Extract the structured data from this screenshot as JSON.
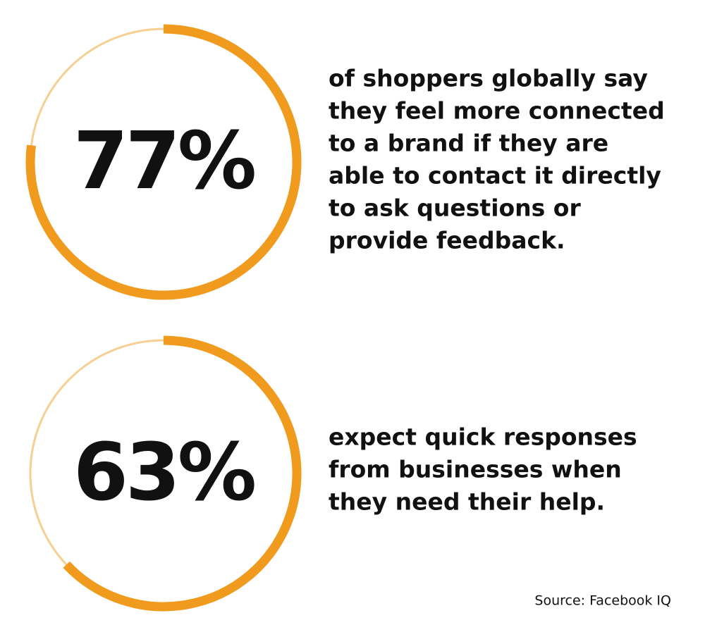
{
  "chart_data": [
    {
      "type": "ring",
      "values": [
        77
      ],
      "value_labels": [
        "77%"
      ],
      "color": "#f09a1e",
      "track_color": "#f6cf92",
      "text_lines": [
        "of shoppers globally say",
        "they feel more connected",
        "to a brand if they are",
        "able to contact it directly",
        "to ask questions or",
        "provide feedback."
      ]
    },
    {
      "type": "ring",
      "values": [
        63
      ],
      "value_labels": [
        "63%"
      ],
      "color": "#f09a1e",
      "track_color": "#f6cf92",
      "text_lines": [
        "expect quick responses",
        "from businesses when",
        "they need their help."
      ]
    }
  ],
  "source": "Source: Facebook IQ"
}
